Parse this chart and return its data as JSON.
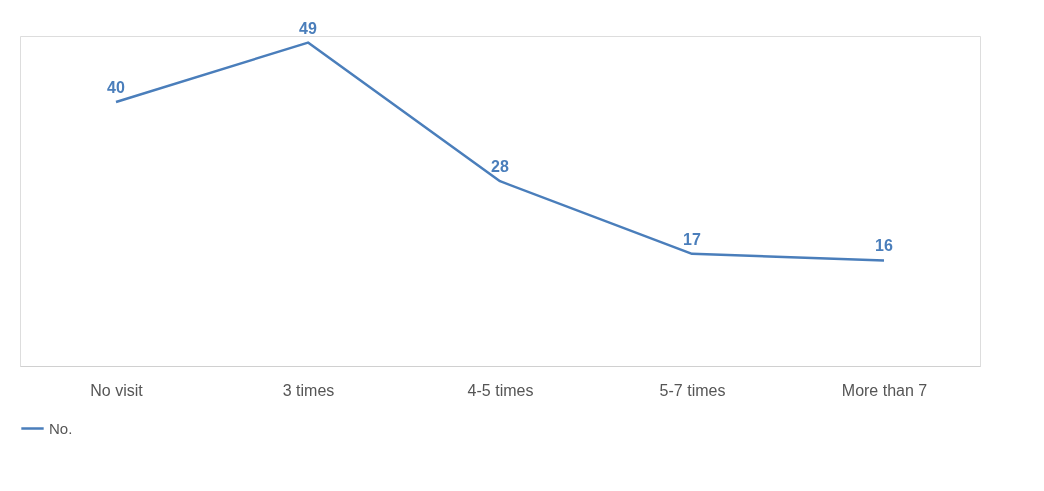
{
  "chart_data": {
    "type": "line",
    "categories": [
      "No visit",
      "3 times",
      "4-5 times",
      "5-7 times",
      "More than 7"
    ],
    "series": [
      {
        "name": "No.",
        "color": "#4a7ebb",
        "values": [
          40,
          49,
          28,
          17,
          16
        ]
      }
    ],
    "data_labels": true,
    "legend": "bottom",
    "grid": false,
    "marker": "none",
    "line_style": "solid"
  }
}
